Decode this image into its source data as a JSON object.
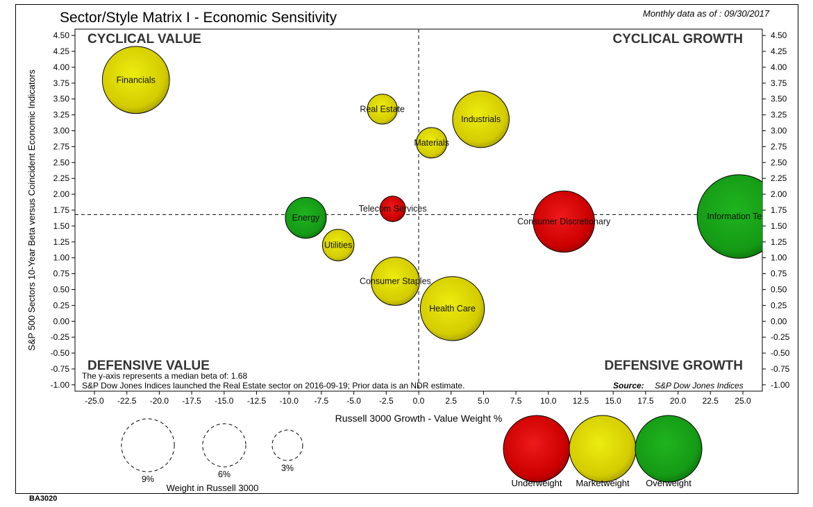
{
  "header": {
    "title": "Sector/Style Matrix I - Economic Sensitivity",
    "as_of": "Monthly data as of : 09/30/2017"
  },
  "footer_code": "BA3020",
  "chart_data": {
    "type": "scatter",
    "title": "Sector/Style Matrix I - Economic Sensitivity",
    "xlabel": "Russell 3000 Growth - Value Weight %",
    "ylabel": "S&P 500 Sectors 10-Year Beta versus Coincident Economic Indicators",
    "xlim": [
      -26.5,
      26.5
    ],
    "ylim": [
      -1.1,
      4.6
    ],
    "x_ticks": [
      -25,
      -22.5,
      -20,
      -17.5,
      -15,
      -12.5,
      -10,
      -7.5,
      -5,
      -2.5,
      0,
      2.5,
      5,
      7.5,
      10,
      12.5,
      15,
      17.5,
      20,
      22.5,
      25
    ],
    "x_tick_labels": [
      "-25.0",
      "-22.5",
      "-20.0",
      "-17.5",
      "-15.0",
      "-12.5",
      "-10.0",
      "-7.5",
      "-5.0",
      "-2.5",
      "0.0",
      "2.5",
      "5.0",
      "7.5",
      "10.0",
      "12.5",
      "15.0",
      "17.5",
      "20.0",
      "22.5",
      "25.0"
    ],
    "y_ticks": [
      4.5,
      4.25,
      4,
      3.75,
      3.5,
      3.25,
      3,
      2.75,
      2.5,
      2.25,
      2,
      1.75,
      1.5,
      1.25,
      1,
      0.75,
      0.5,
      0.25,
      0,
      -0.25,
      -0.5,
      -0.75,
      -1
    ],
    "y_tick_labels": [
      "4.50",
      "4.25",
      "4.00",
      "3.75",
      "3.50",
      "3.25",
      "3.00",
      "2.75",
      "2.50",
      "2.25",
      "2.00",
      "1.75",
      "1.50",
      "1.25",
      "1.00",
      "0.75",
      "0.50",
      "0.25",
      "0.00",
      "-0.25",
      "-0.50",
      "-0.75",
      "-1.00"
    ],
    "median_beta": 1.68,
    "x_divider": 0,
    "grid": false,
    "quadrants": {
      "top_left": "CYCLICAL VALUE",
      "top_right": "CYCLICAL GROWTH",
      "bottom_left": "DEFENSIVE VALUE",
      "bottom_right": "DEFENSIVE GROWTH"
    },
    "notes": [
      "The y-axis represents a median beta of: 1.68",
      "S&P Dow Jones Indices launched the Real Estate sector on 2016-09-19; Prior data is an NDR estimate."
    ],
    "source_label": "Source:",
    "source_text": "S&P Dow Jones Indices",
    "colors": {
      "Underweight": "#cc0000",
      "Marketweight": "#d4cc00",
      "Overweight": "#159a15"
    },
    "points": [
      {
        "label": "Financials",
        "x": -21.8,
        "y": 3.8,
        "weight": 14.5,
        "rating": "Marketweight"
      },
      {
        "label": "Real Estate",
        "x": -2.8,
        "y": 3.34,
        "weight": 2.9,
        "rating": "Marketweight"
      },
      {
        "label": "Industrials",
        "x": 4.8,
        "y": 3.18,
        "weight": 10.3,
        "rating": "Marketweight"
      },
      {
        "label": "Materials",
        "x": 1.0,
        "y": 2.81,
        "weight": 3.0,
        "rating": "Marketweight"
      },
      {
        "label": "Telecom Services",
        "x": -2.0,
        "y": 1.77,
        "weight": 2.1,
        "rating": "Underweight"
      },
      {
        "label": "Energy",
        "x": -8.7,
        "y": 1.63,
        "weight": 5.4,
        "rating": "Overweight"
      },
      {
        "label": "Utilities",
        "x": -6.2,
        "y": 1.2,
        "weight": 3.2,
        "rating": "Marketweight"
      },
      {
        "label": "Consumer Discretionary",
        "x": 11.2,
        "y": 1.57,
        "weight": 12.1,
        "rating": "Underweight"
      },
      {
        "label": "Information Tech",
        "x": 24.7,
        "y": 1.65,
        "weight": 22.5,
        "rating": "Overweight"
      },
      {
        "label": "Consumer Staples",
        "x": -1.8,
        "y": 0.63,
        "weight": 7.5,
        "rating": "Marketweight"
      },
      {
        "label": "Health Care",
        "x": 2.6,
        "y": 0.2,
        "weight": 13.2,
        "rating": "Marketweight"
      }
    ],
    "size_legend": {
      "title": "Weight in Russell 3000",
      "items": [
        {
          "label": "9%",
          "weight": 9
        },
        {
          "label": "6%",
          "weight": 6
        },
        {
          "label": "3%",
          "weight": 3
        }
      ]
    },
    "color_legend": [
      "Underweight",
      "Marketweight",
      "Overweight"
    ]
  }
}
